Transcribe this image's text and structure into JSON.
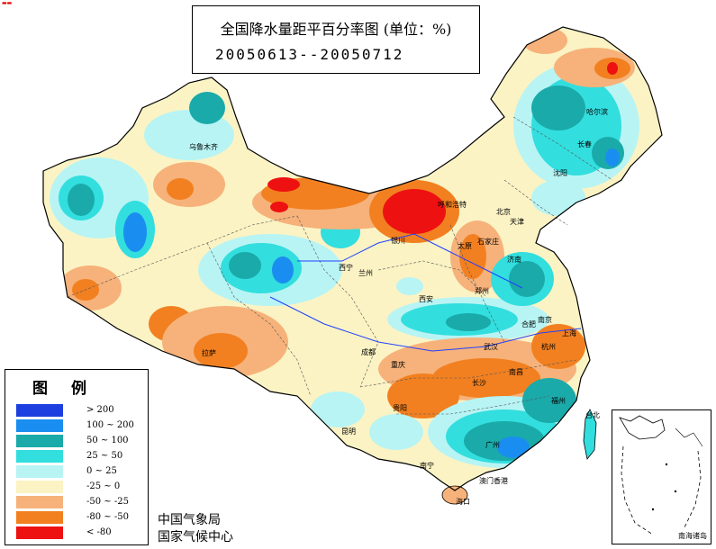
{
  "title": {
    "line1": "全国降水量距平百分率图 (单位：%)",
    "line2": "20050613--20050712"
  },
  "legend": {
    "heading": "图例",
    "classes": [
      {
        "label": "> 200",
        "color": "#1d3fe0"
      },
      {
        "label": "100 ~ 200",
        "color": "#1a8ef0"
      },
      {
        "label": "50 ~ 100",
        "color": "#1aaaaa"
      },
      {
        "label": "25 ~ 50",
        "color": "#33dede"
      },
      {
        "label": "0 ~ 25",
        "color": "#b8f4f4"
      },
      {
        "label": "-25 ~ 0",
        "color": "#fbf3c4"
      },
      {
        "label": "-50 ~ -25",
        "color": "#f6b27a"
      },
      {
        "label": "-80 ~ -50",
        "color": "#f28020"
      },
      {
        "label": "< -80",
        "color": "#ee1111"
      }
    ]
  },
  "agencies": [
    "中国气象局",
    "国家气候中心"
  ],
  "inset": {
    "label": "南海诸岛"
  },
  "cities": [
    {
      "name": "乌鲁木齐"
    },
    {
      "name": "拉萨"
    },
    {
      "name": "西宁"
    },
    {
      "name": "兰州"
    },
    {
      "name": "银川"
    },
    {
      "name": "呼和浩特"
    },
    {
      "name": "北京"
    },
    {
      "name": "天津"
    },
    {
      "name": "石家庄"
    },
    {
      "name": "太原"
    },
    {
      "name": "济南"
    },
    {
      "name": "郑州"
    },
    {
      "name": "西安"
    },
    {
      "name": "成都"
    },
    {
      "name": "重庆"
    },
    {
      "name": "贵阳"
    },
    {
      "name": "昆明"
    },
    {
      "name": "南宁"
    },
    {
      "name": "广州"
    },
    {
      "name": "海口"
    },
    {
      "name": "长沙"
    },
    {
      "name": "武汉"
    },
    {
      "name": "合肥"
    },
    {
      "name": "南京"
    },
    {
      "name": "上海"
    },
    {
      "name": "杭州"
    },
    {
      "name": "南昌"
    },
    {
      "name": "福州"
    },
    {
      "name": "台北"
    },
    {
      "name": "澳门香港"
    },
    {
      "name": "沈阳"
    },
    {
      "name": "长春"
    },
    {
      "name": "哈尔滨"
    }
  ]
}
